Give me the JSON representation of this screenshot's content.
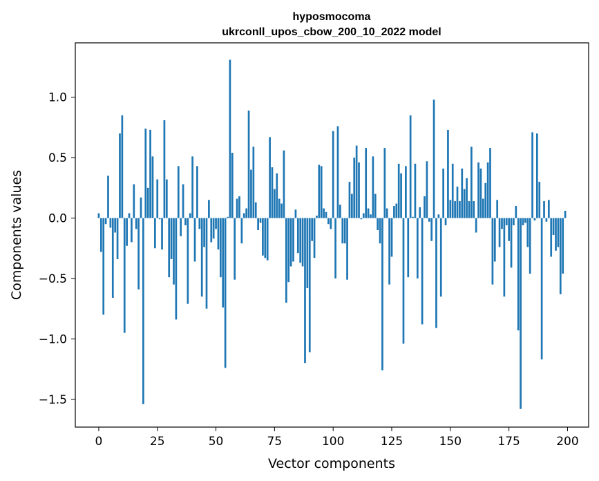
{
  "chart_data": {
    "type": "bar",
    "title_line1": "hyposmocoma",
    "title_line2": "ukrconll_upos_cbow_200_10_2022 model",
    "xlabel": "Vector components",
    "ylabel": "Components values",
    "xlim": [
      -10,
      209
    ],
    "ylim": [
      -1.73,
      1.45
    ],
    "xticks": [
      0,
      25,
      50,
      75,
      100,
      125,
      150,
      175,
      200
    ],
    "xtick_labels": [
      "0",
      "25",
      "50",
      "75",
      "100",
      "125",
      "150",
      "175",
      "200"
    ],
    "yticks": [
      1.0,
      0.5,
      0.0,
      -0.5,
      -1.0,
      -1.5
    ],
    "ytick_labels": [
      "1.0",
      "0.5",
      "0.0",
      "−0.5",
      "−1.0",
      "−1.5"
    ],
    "bar_color": "#1f77b4",
    "values": [
      0.04,
      -0.28,
      -0.8,
      -0.05,
      0.35,
      -0.08,
      -0.66,
      -0.12,
      -0.34,
      0.7,
      0.85,
      -0.95,
      -0.23,
      0.04,
      -0.2,
      0.28,
      -0.09,
      -0.59,
      0.17,
      -1.54,
      0.74,
      0.25,
      0.73,
      0.51,
      -0.25,
      0.32,
      -0.01,
      -0.26,
      0.81,
      0.32,
      -0.49,
      -0.34,
      -0.55,
      -0.84,
      0.43,
      -0.15,
      0.28,
      -0.06,
      -0.71,
      0.04,
      0.51,
      -0.36,
      0.43,
      -0.09,
      -0.65,
      -0.24,
      -0.75,
      0.15,
      -0.2,
      -0.17,
      -0.09,
      -0.26,
      -0.49,
      -0.74,
      -1.24,
      0.01,
      1.31,
      0.54,
      -0.51,
      0.16,
      0.18,
      -0.21,
      0.04,
      0.08,
      0.89,
      0.4,
      0.59,
      0.13,
      -0.1,
      -0.04,
      -0.31,
      -0.33,
      -0.35,
      0.67,
      0.42,
      0.24,
      0.37,
      0.16,
      0.12,
      0.56,
      -0.7,
      -0.53,
      -0.4,
      -0.36,
      0.07,
      -0.29,
      -0.37,
      -0.4,
      -1.2,
      -0.58,
      -1.11,
      -0.19,
      -0.33,
      0.02,
      0.44,
      0.43,
      0.08,
      0.05,
      -0.05,
      -0.09,
      0.72,
      -0.5,
      0.76,
      0.11,
      -0.21,
      -0.21,
      -0.51,
      0.3,
      0.2,
      0.5,
      0.6,
      0.46,
      -0.01,
      0.04,
      0.58,
      0.08,
      0.03,
      0.51,
      0.2,
      -0.1,
      -0.21,
      -1.26,
      0.58,
      0.08,
      -0.55,
      -0.32,
      0.1,
      0.12,
      0.45,
      0.37,
      -1.04,
      0.43,
      -0.49,
      0.85,
      0.01,
      0.45,
      -0.5,
      0.09,
      -0.88,
      0.18,
      0.47,
      -0.03,
      -0.19,
      0.98,
      -0.91,
      0.03,
      -0.65,
      0.41,
      -0.06,
      0.73,
      0.15,
      0.45,
      0.14,
      0.26,
      0.14,
      0.41,
      0.24,
      0.33,
      0.14,
      0.59,
      0.14,
      -0.12,
      0.46,
      0.41,
      0.16,
      0.29,
      0.46,
      0.58,
      -0.55,
      -0.36,
      0.15,
      -0.24,
      -0.09,
      -0.65,
      -0.06,
      -0.19,
      -0.41,
      -0.06,
      0.1,
      -0.93,
      -1.58,
      -0.06,
      -0.04,
      -0.24,
      -0.46,
      0.71,
      -0.02,
      0.7,
      0.3,
      -1.17,
      0.14,
      -0.03,
      0.15,
      -0.32,
      -0.14,
      -0.27,
      -0.24,
      -0.63,
      -0.46,
      0.06
    ]
  }
}
